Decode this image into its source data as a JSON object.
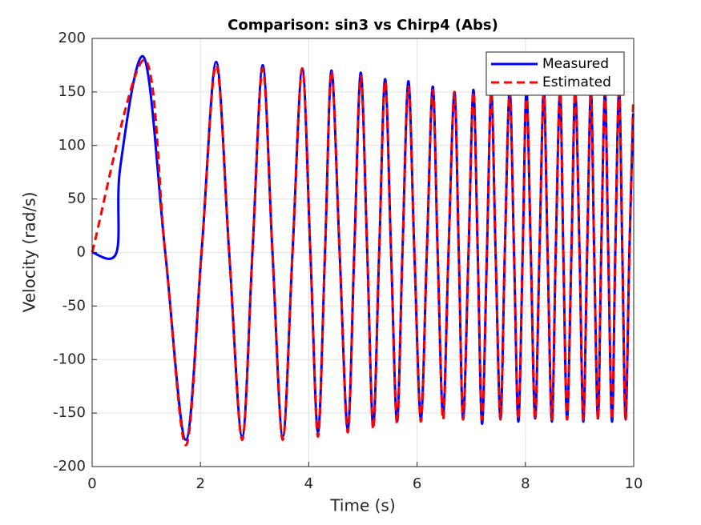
{
  "chart_data": {
    "type": "line",
    "title": "Comparison: sin3 vs Chirp4 (Abs)",
    "xlabel": "Time (s)",
    "ylabel": "Velocity (rad/s)",
    "xlim": [
      0,
      10
    ],
    "ylim": [
      -200,
      200
    ],
    "xticks": [
      0,
      2,
      4,
      6,
      8,
      10
    ],
    "yticks": [
      -200,
      -150,
      -100,
      -50,
      0,
      50,
      100,
      150,
      200
    ],
    "grid": true,
    "legend": "upper-right",
    "series": [
      {
        "name": "Measured",
        "color": "#0000ff",
        "dash": "solid",
        "x": [
          0,
          0.45,
          0.52,
          0.96,
          1.35,
          1.73,
          2.02,
          2.29,
          2.53,
          2.77,
          2.96,
          3.15,
          3.33,
          3.52,
          3.7,
          3.88,
          4.03,
          4.17,
          4.3,
          4.42,
          4.57,
          4.72,
          4.84,
          4.96,
          5.08,
          5.19,
          5.3,
          5.41,
          5.52,
          5.63,
          5.73,
          5.84,
          5.95,
          6.07,
          6.18,
          6.29,
          6.38,
          6.48,
          6.58,
          6.69,
          6.77,
          6.85,
          6.95,
          7.04,
          7.12,
          7.2,
          7.29,
          7.37,
          7.45,
          7.54,
          7.62,
          7.71,
          7.79,
          7.87,
          7.95,
          8.02,
          8.1,
          8.18,
          8.26,
          8.34,
          8.41,
          8.49,
          8.56,
          8.64,
          8.7,
          8.77,
          8.85,
          8.92,
          9.0,
          9.07,
          9.14,
          9.21,
          9.27,
          9.34,
          9.4,
          9.47,
          9.53,
          9.6,
          9.66,
          9.73,
          9.79,
          9.85,
          9.92,
          9.99
        ],
        "values": [
          0,
          0,
          80,
          182,
          0,
          -175,
          0,
          178,
          0,
          -172,
          0,
          175,
          0,
          -172,
          0,
          172,
          0,
          -168,
          0,
          170,
          0,
          -165,
          0,
          168,
          0,
          -162,
          0,
          162,
          0,
          -158,
          0,
          160,
          0,
          -155,
          0,
          155,
          0,
          -152,
          0,
          150,
          0,
          -155,
          0,
          152,
          0,
          -160,
          0,
          152,
          0,
          -155,
          0,
          152,
          0,
          -158,
          0,
          152,
          0,
          -155,
          0,
          152,
          0,
          -158,
          0,
          152,
          0,
          -155,
          0,
          152,
          0,
          -158,
          0,
          152,
          0,
          -155,
          0,
          150,
          0,
          -158,
          0,
          152,
          0,
          -155,
          0,
          130
        ]
      },
      {
        "name": "Estimated",
        "color": "#ff0000",
        "dash": "dashed",
        "x": [
          0,
          0.96,
          1.35,
          1.73,
          2.02,
          2.29,
          2.53,
          2.77,
          2.96,
          3.15,
          3.33,
          3.52,
          3.7,
          3.88,
          4.03,
          4.17,
          4.3,
          4.42,
          4.57,
          4.72,
          4.84,
          4.96,
          5.08,
          5.19,
          5.3,
          5.41,
          5.52,
          5.63,
          5.73,
          5.84,
          5.95,
          6.07,
          6.18,
          6.29,
          6.38,
          6.48,
          6.58,
          6.69,
          6.77,
          6.85,
          6.95,
          7.04,
          7.12,
          7.2,
          7.29,
          7.37,
          7.45,
          7.54,
          7.62,
          7.71,
          7.79,
          7.87,
          7.95,
          8.02,
          8.1,
          8.18,
          8.26,
          8.34,
          8.41,
          8.49,
          8.56,
          8.64,
          8.7,
          8.77,
          8.85,
          8.92,
          9.0,
          9.07,
          9.14,
          9.21,
          9.27,
          9.34,
          9.4,
          9.47,
          9.53,
          9.6,
          9.66,
          9.73,
          9.79,
          9.85,
          9.92,
          9.99
        ],
        "values": [
          0,
          180,
          0,
          -180,
          0,
          175,
          0,
          -175,
          0,
          172,
          0,
          -175,
          0,
          172,
          0,
          -172,
          0,
          170,
          0,
          -168,
          0,
          165,
          0,
          -165,
          0,
          160,
          0,
          -160,
          0,
          155,
          0,
          -158,
          0,
          152,
          0,
          -156,
          0,
          150,
          0,
          -156,
          0,
          150,
          0,
          -156,
          0,
          150,
          0,
          -156,
          0,
          150,
          0,
          -156,
          0,
          150,
          0,
          -156,
          0,
          150,
          0,
          -156,
          0,
          150,
          0,
          -156,
          0,
          150,
          0,
          -156,
          0,
          150,
          0,
          -156,
          0,
          150,
          0,
          -156,
          0,
          150,
          0,
          -156,
          0,
          140
        ]
      }
    ]
  }
}
